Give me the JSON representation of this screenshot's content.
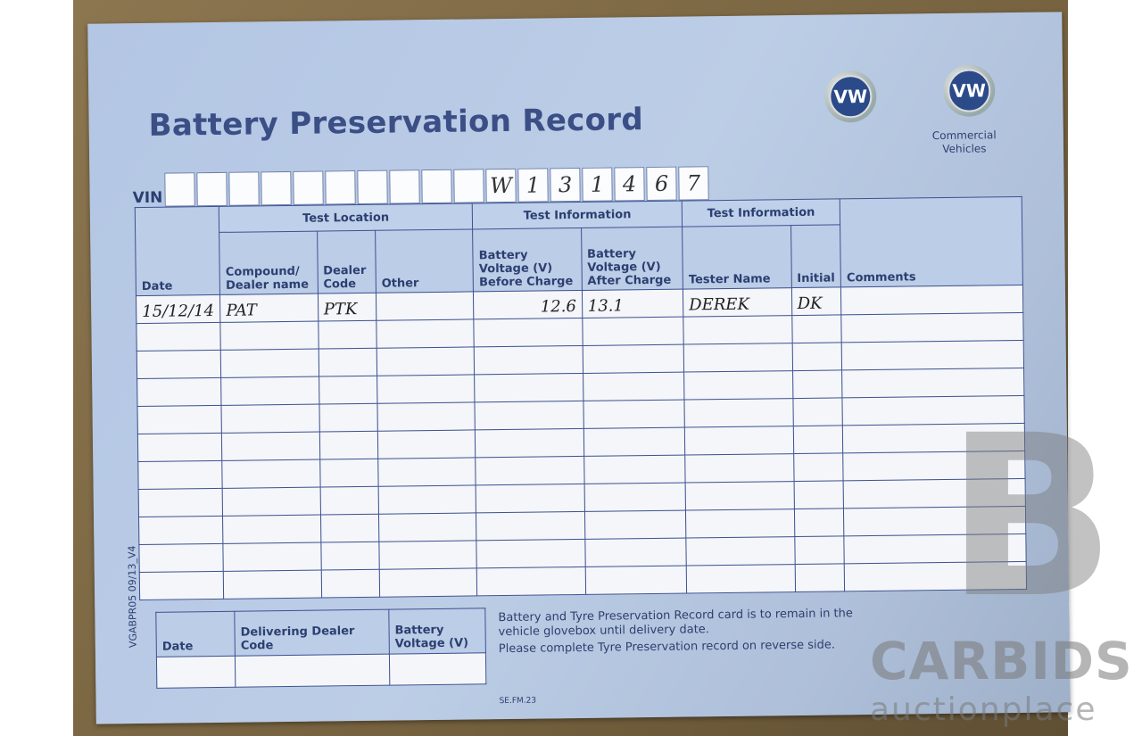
{
  "title": "Battery Preservation Record",
  "logos": {
    "vw": "VW",
    "commercial": "VW",
    "commercial_caption_1": "Commercial",
    "commercial_caption_2": "Vehicles"
  },
  "vin": {
    "label": "VIN",
    "chars": [
      "",
      "",
      "",
      "",
      "",
      "",
      "",
      "",
      "",
      "",
      "W",
      "1",
      "3",
      "1",
      "4",
      "6",
      "7"
    ]
  },
  "table": {
    "groups": {
      "test_location": "Test Location",
      "test_info_1": "Test Information",
      "test_info_2": "Test Information"
    },
    "headers": {
      "date": "Date",
      "compound": "Compound/ Dealer name",
      "dealer_code": "Dealer Code",
      "other": "Other",
      "before": "Battery Voltage (V) Before Charge",
      "after": "Battery Voltage (V) After Charge",
      "tester": "Tester Name",
      "initial": "Initial",
      "comments": "Comments"
    },
    "rows": [
      [
        "15/12/14",
        "PAT",
        "PTK",
        "",
        "12.6",
        "13.1",
        "DEREK",
        "DK",
        ""
      ],
      [
        "",
        "",
        "",
        "",
        "",
        "",
        "",
        "",
        ""
      ],
      [
        "",
        "",
        "",
        "",
        "",
        "",
        "",
        "",
        ""
      ],
      [
        "",
        "",
        "",
        "",
        "",
        "",
        "",
        "",
        ""
      ],
      [
        "",
        "",
        "",
        "",
        "",
        "",
        "",
        "",
        ""
      ],
      [
        "",
        "",
        "",
        "",
        "",
        "",
        "",
        "",
        ""
      ],
      [
        "",
        "",
        "",
        "",
        "",
        "",
        "",
        "",
        ""
      ],
      [
        "",
        "",
        "",
        "",
        "",
        "",
        "",
        "",
        ""
      ],
      [
        "",
        "",
        "",
        "",
        "",
        "",
        "",
        "",
        ""
      ],
      [
        "",
        "",
        "",
        "",
        "",
        "",
        "",
        "",
        ""
      ],
      [
        "",
        "",
        "",
        "",
        "",
        "",
        "",
        "",
        ""
      ]
    ]
  },
  "delivery": {
    "date": "Date",
    "dealer_code": "Delivering Dealer Code",
    "voltage": "Battery Voltage (V)"
  },
  "side_code": "VGABPR05 09/13_V4",
  "note": {
    "line1": "Battery and Tyre Preservation Record card is to remain in the",
    "line2": "vehicle glovebox until delivery date.",
    "line3": "Please complete Tyre Preservation record on reverse side."
  },
  "form_code": "SE.FM.23",
  "watermark": {
    "letter": "B",
    "brand": "CARBIDS",
    "tagline": "auctionplace"
  }
}
